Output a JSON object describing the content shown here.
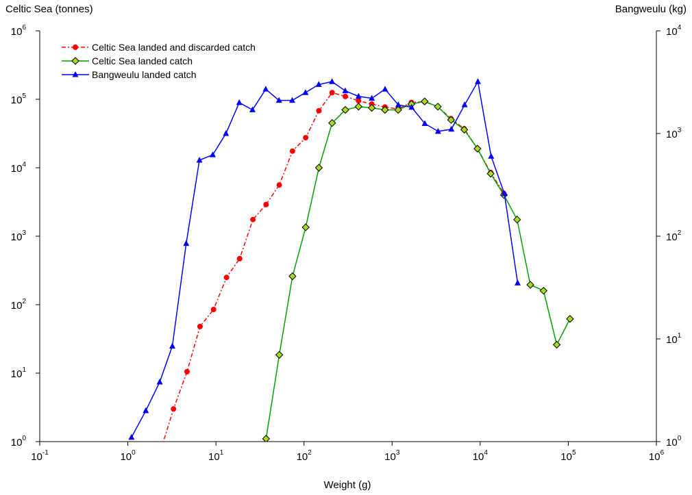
{
  "chart_data": {
    "type": "line",
    "xlabel": "Weight (g)",
    "ylabel_left": "Celtic Sea (tonnes)",
    "ylabel_right": "Bangweulu (kg)",
    "x_scale": "log",
    "y_scale": "log",
    "xlim": [
      0.1,
      1000000
    ],
    "ylim_left": [
      1,
      1000000
    ],
    "ylim_right": [
      1,
      10000
    ],
    "x_ticks": [
      0.1,
      1,
      10,
      100,
      1000,
      10000,
      100000,
      1000000
    ],
    "x_tick_labels": [
      [
        "10",
        "-1"
      ],
      [
        "10",
        "0"
      ],
      [
        "10",
        "1"
      ],
      [
        "10",
        "2"
      ],
      [
        "10",
        "3"
      ],
      [
        "10",
        "4"
      ],
      [
        "10",
        "5"
      ],
      [
        "10",
        "6"
      ]
    ],
    "y_left_ticks": [
      1,
      10,
      100,
      1000,
      10000,
      100000,
      1000000
    ],
    "y_left_tick_labels": [
      [
        "10",
        "0"
      ],
      [
        "10",
        "1"
      ],
      [
        "10",
        "2"
      ],
      [
        "10",
        "3"
      ],
      [
        "10",
        "4"
      ],
      [
        "10",
        "5"
      ],
      [
        "10",
        "6"
      ]
    ],
    "y_right_ticks": [
      1,
      10,
      100,
      1000,
      10000
    ],
    "y_right_tick_labels": [
      [
        "10",
        "0"
      ],
      [
        "10",
        "1"
      ],
      [
        "10",
        "2"
      ],
      [
        "10",
        "3"
      ],
      [
        "10",
        "4"
      ]
    ],
    "grid": false,
    "legend_position": "top-left",
    "series": [
      {
        "name": "Celtic Sea landed and discarded catch",
        "axis": "left",
        "color": "#ff0000",
        "line_style": "dashdot",
        "marker": "circle",
        "x": [
          2.4,
          3.3,
          4.7,
          6.6,
          9.4,
          13.2,
          18.6,
          26.3,
          37.1,
          52.4,
          74,
          104.5,
          147.6,
          208.5,
          294.5,
          416,
          587.5,
          830,
          1172,
          1656,
          2339,
          3304,
          4667,
          6592,
          9311,
          13152,
          18578
        ],
        "y": [
          0.8,
          3,
          10.5,
          48,
          85,
          250,
          470,
          1750,
          2900,
          5600,
          17500,
          27500,
          68000,
          125000,
          110000,
          95000,
          85000,
          77000,
          72000,
          90000,
          92000,
          78000,
          52000,
          37000,
          19000,
          8500,
          4200
        ]
      },
      {
        "name": "Celtic Sea landed catch",
        "axis": "left",
        "color": "#00a000",
        "marker_fill": "#a8d820",
        "line_style": "solid",
        "marker": "diamond",
        "x": [
          37.1,
          52.4,
          74,
          104.5,
          147.6,
          208.5,
          294.5,
          416,
          587.5,
          830,
          1172,
          1656,
          2339,
          3304,
          4667,
          6592,
          9311,
          13152,
          18578,
          26244,
          37072,
          52368,
          73976,
          104500
        ],
        "y": [
          1.1,
          18.5,
          260,
          1350,
          10000,
          45000,
          70000,
          78000,
          75000,
          70000,
          70000,
          85000,
          93000,
          78000,
          50000,
          36000,
          19000,
          8200,
          4000,
          1750,
          195,
          160,
          26,
          62
        ]
      },
      {
        "name": "Bangweulu landed catch",
        "axis": "right",
        "color": "#0000ff",
        "line_style": "solid",
        "marker": "triangle",
        "x": [
          1.1,
          1.6,
          2.3,
          3.2,
          4.6,
          6.5,
          9.2,
          13,
          18.4,
          26,
          36.8,
          52,
          73.5,
          103.9,
          147,
          208,
          294,
          416,
          588,
          832,
          1176,
          1664,
          2352,
          3328,
          4704,
          6656,
          9412,
          13312,
          18816,
          26624
        ],
        "y": [
          1.1,
          2,
          3.8,
          8.5,
          85,
          550,
          620,
          1000,
          2000,
          1700,
          2700,
          2100,
          2100,
          2500,
          3000,
          3200,
          2600,
          2300,
          2200,
          2700,
          1900,
          1800,
          1250,
          1050,
          1100,
          1900,
          3200,
          600,
          260,
          35
        ]
      }
    ]
  }
}
